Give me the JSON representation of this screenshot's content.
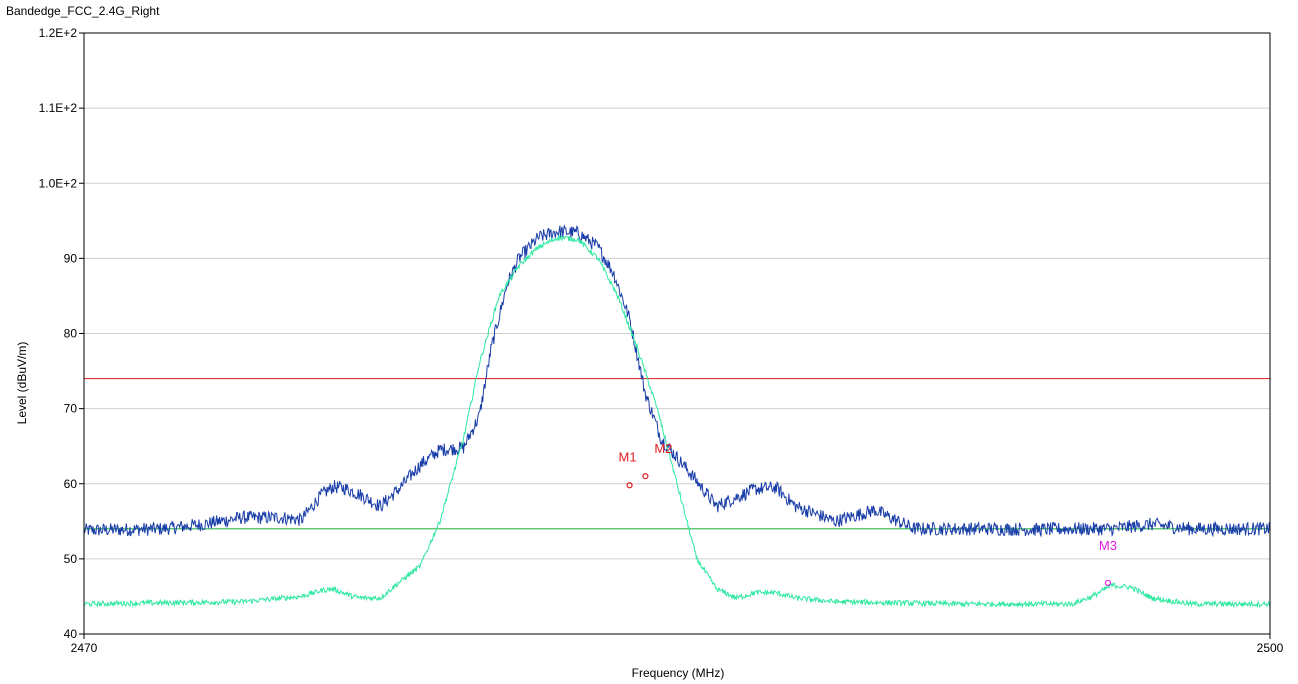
{
  "chart_data": {
    "type": "line",
    "title": "Bandedge_FCC_2.4G_Right",
    "xlabel": "Frequency (MHz)",
    "ylabel": "Level (dBuV/m)",
    "xlim": [
      2470,
      2500
    ],
    "ylim": [
      40,
      120
    ],
    "x_tick_labels": [
      "2470",
      "2500"
    ],
    "x_tick_values": [
      2470,
      2500
    ],
    "y_tick_labels": [
      "40",
      "50",
      "60",
      "70",
      "80",
      "90",
      "1.0E+2",
      "1.1E+2",
      "1.2E+2"
    ],
    "y_tick_values": [
      40,
      50,
      60,
      70,
      80,
      90,
      100,
      110,
      120
    ],
    "grid": "horizontal",
    "limit_lines": [
      {
        "value": 74,
        "color": "#e03030"
      },
      {
        "value": 54,
        "color": "#2fb84a"
      }
    ],
    "series": [
      {
        "color": "#1a3ea8",
        "noise": 0.9,
        "x": [
          2470,
          2472,
          2473,
          2474,
          2475,
          2475.5,
          2476,
          2476.3,
          2476.6,
          2477,
          2477.5,
          2478,
          2478.5,
          2479,
          2479.6,
          2480,
          2480.3,
          2480.7,
          2481,
          2481.5,
          2482,
          2482.5,
          2483,
          2483.4,
          2483.8,
          2484.2,
          2484.6,
          2485,
          2485.4,
          2486,
          2486.5,
          2487,
          2487.5,
          2488,
          2489,
          2490,
          2491,
          2492,
          2493,
          2494,
          2495,
          2495.5,
          2496,
          2497,
          2498,
          2499,
          2500
        ],
        "y": [
          53.8,
          54.0,
          54.6,
          55.5,
          55.5,
          55.2,
          58.5,
          59.6,
          59.4,
          58.5,
          57.0,
          59.5,
          62.5,
          64.5,
          64.8,
          69.0,
          78.0,
          86.5,
          90.0,
          92.8,
          93.6,
          93.4,
          91.5,
          88.0,
          82.0,
          72.0,
          66.0,
          63.5,
          61.0,
          57.0,
          58.2,
          59.3,
          59.5,
          57.0,
          55.0,
          56.5,
          54.0,
          54.0,
          54.0,
          53.9,
          54.0,
          54.0,
          54.0,
          54.6,
          54.0,
          54.0,
          54.0
        ]
      },
      {
        "color": "#2de8a0",
        "noise": 0.35,
        "x": [
          2470,
          2474,
          2475.5,
          2476,
          2476.3,
          2476.8,
          2477,
          2477.5,
          2478,
          2478.5,
          2479,
          2479.6,
          2480,
          2480.5,
          2481,
          2481.5,
          2482,
          2482.5,
          2483,
          2483.5,
          2484,
          2484.5,
          2485,
          2485.5,
          2486,
          2486.5,
          2487,
          2487.5,
          2488,
          2489,
          2492,
          2495,
          2495.5,
          2496,
          2496.5,
          2497,
          2498,
          2500
        ],
        "y": [
          44.0,
          44.3,
          45.0,
          45.8,
          46.0,
          45.0,
          44.8,
          44.8,
          47.0,
          49.0,
          55.0,
          66.0,
          76.0,
          85.0,
          89.0,
          91.5,
          92.8,
          92.5,
          90.0,
          85.0,
          78.0,
          70.0,
          60.0,
          50.0,
          46.0,
          44.8,
          45.5,
          45.5,
          44.8,
          44.3,
          44.0,
          44.0,
          45.0,
          46.5,
          46.2,
          44.8,
          44.0,
          44.0
        ]
      }
    ],
    "markers": [
      {
        "label": "M1",
        "x": 2483.8,
        "y": 59.8,
        "color": "#e02020"
      },
      {
        "label": "M2",
        "x": 2484.2,
        "y": 61.0,
        "color": "#e02020"
      },
      {
        "label": "M3",
        "x": 2495.9,
        "y": 46.8,
        "color": "#e020e0"
      }
    ]
  }
}
